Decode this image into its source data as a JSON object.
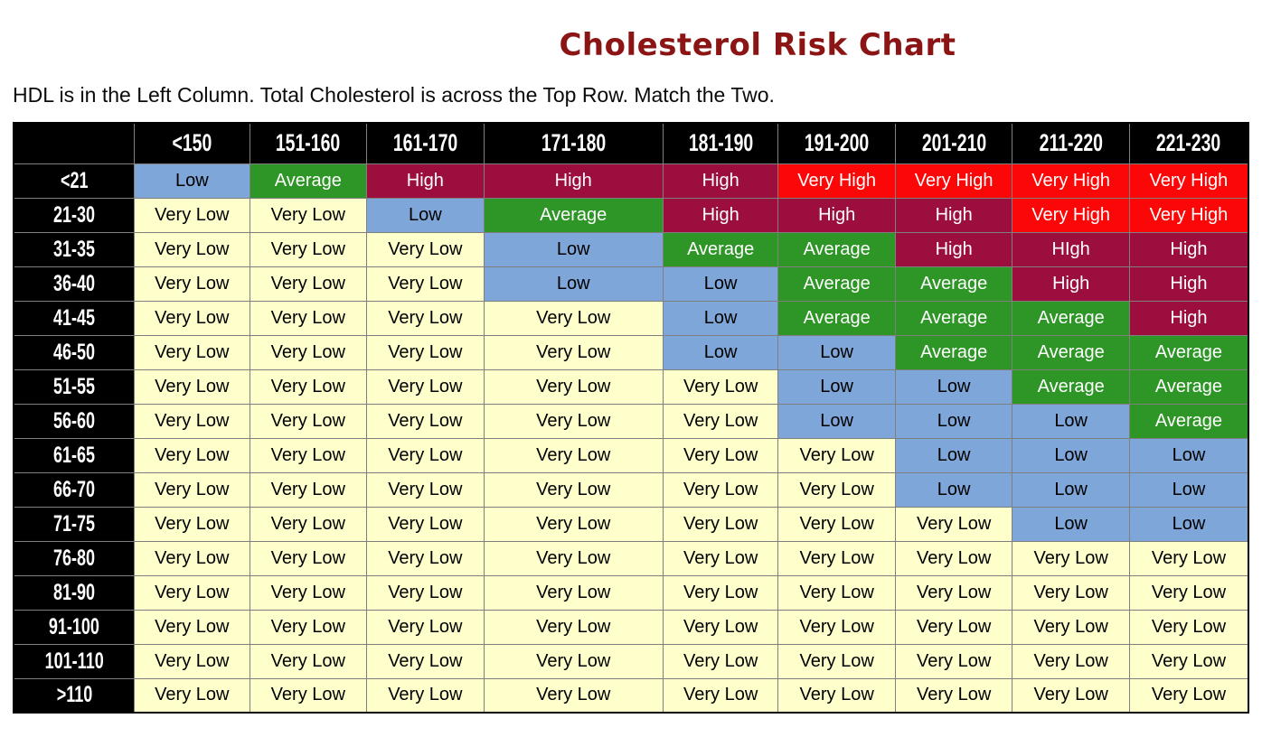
{
  "title": "Cholesterol Risk Chart",
  "subtitle": "HDL is in the Left Column. Total Cholesterol is across the Top Row. Match the Two.",
  "colors": {
    "title": "#8B1414",
    "header_bg": "#000000",
    "header_text": "#FFFFFF",
    "grid": "#7F7F7F",
    "very_low": "#FFFFCC",
    "low": "#7EA6D8",
    "average": "#2E9626",
    "high": "#9B0E3D",
    "very_high": "#FB0707"
  },
  "chart_data": {
    "type": "table",
    "title": "Cholesterol Risk Chart",
    "row_axis": "HDL",
    "column_axis": "Total Cholesterol",
    "columns": [
      "<150",
      "151-160",
      "161-170",
      "171-180",
      "181-190",
      "191-200",
      "201-210",
      "211-220",
      "221-230"
    ],
    "levels": {
      "Very Low": "#FFFFCC",
      "Low": "#7EA6D8",
      "Average": "#2E9626",
      "High": "#9B0E3D",
      "Very High": "#FB0707"
    },
    "rows": [
      {
        "hdl": "<21",
        "cells": [
          "Low",
          "Average",
          "High",
          "High",
          "High",
          "Very High",
          "Very High",
          "Very High",
          "Very High"
        ]
      },
      {
        "hdl": "21-30",
        "cells": [
          "Very Low",
          "Very Low",
          "Low",
          "Average",
          "High",
          "High",
          "High",
          "Very High",
          "Very High"
        ]
      },
      {
        "hdl": "31-35",
        "cells": [
          "Very Low",
          "Very Low",
          "Very Low",
          "Low",
          "Average",
          "Average",
          "High",
          "HIgh",
          "High"
        ]
      },
      {
        "hdl": "36-40",
        "cells": [
          "Very Low",
          "Very Low",
          "Very Low",
          "Low",
          "Low",
          "Average",
          "Average",
          "High",
          "High"
        ]
      },
      {
        "hdl": "41-45",
        "cells": [
          "Very Low",
          "Very Low",
          "Very Low",
          "Very Low",
          "Low",
          "Average",
          "Average",
          "Average",
          "High"
        ]
      },
      {
        "hdl": "46-50",
        "cells": [
          "Very Low",
          "Very Low",
          "Very Low",
          "Very Low",
          "Low",
          "Low",
          "Average",
          "Average",
          "Average"
        ]
      },
      {
        "hdl": "51-55",
        "cells": [
          "Very Low",
          "Very Low",
          "Very Low",
          "Very Low",
          "Very Low",
          "Low",
          "Low",
          "Average",
          "Average"
        ]
      },
      {
        "hdl": "56-60",
        "cells": [
          "Very Low",
          "Very Low",
          "Very Low",
          "Very Low",
          "Very Low",
          "Low",
          "Low",
          "Low",
          "Average"
        ]
      },
      {
        "hdl": "61-65",
        "cells": [
          "Very Low",
          "Very Low",
          "Very Low",
          "Very Low",
          "Very Low",
          "Very Low",
          "Low",
          "Low",
          "Low"
        ]
      },
      {
        "hdl": "66-70",
        "cells": [
          "Very Low",
          "Very Low",
          "Very Low",
          "Very Low",
          "Very Low",
          "Very Low",
          "Low",
          "Low",
          "Low"
        ]
      },
      {
        "hdl": "71-75",
        "cells": [
          "Very Low",
          "Very Low",
          "Very Low",
          "Very Low",
          "Very Low",
          "Very Low",
          "Very Low",
          "Low",
          "Low"
        ]
      },
      {
        "hdl": "76-80",
        "cells": [
          "Very Low",
          "Very Low",
          "Very Low",
          "Very Low",
          "Very Low",
          "Very Low",
          "Very Low",
          "Very Low",
          "Very Low"
        ]
      },
      {
        "hdl": "81-90",
        "cells": [
          "Very Low",
          "Very Low",
          "Very Low",
          "Very Low",
          "Very Low",
          "Very Low",
          "Very Low",
          "Very Low",
          "Very Low"
        ]
      },
      {
        "hdl": "91-100",
        "cells": [
          "Very Low",
          "Very Low",
          "Very Low",
          "Very Low",
          "Very Low",
          "Very Low",
          "Very Low",
          "Very Low",
          "Very Low"
        ]
      },
      {
        "hdl": "101-110",
        "cells": [
          "Very Low",
          "Very Low",
          "Very Low",
          "Very Low",
          "Very Low",
          "Very Low",
          "Very Low",
          "Very Low",
          "Very Low"
        ]
      },
      {
        "hdl": ">110",
        "cells": [
          "Very Low",
          "Very Low",
          "Very Low",
          "Very Low",
          "Very Low",
          "Very Low",
          "Very Low",
          "Very Low",
          "Very Low"
        ]
      }
    ]
  }
}
